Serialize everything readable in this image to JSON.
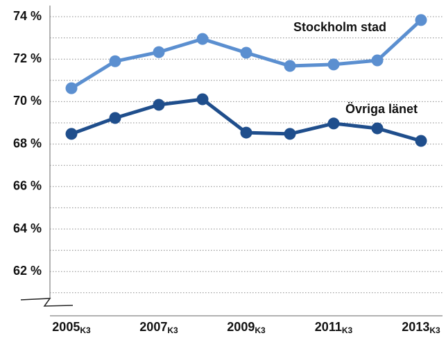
{
  "chart_data": {
    "type": "line",
    "categories": [
      "2005",
      null,
      "2007",
      null,
      "2009",
      null,
      "2011",
      null,
      "2013"
    ],
    "category_suffix": "K3",
    "series": [
      {
        "name": "Stockholm stad",
        "color": "#5b8fd0",
        "values": [
          70.63,
          71.9,
          72.33,
          72.95,
          72.3,
          71.68,
          71.75,
          71.94,
          73.84
        ]
      },
      {
        "name": "Övriga länet",
        "color": "#1f4e8c",
        "values": [
          68.48,
          69.23,
          69.85,
          70.11,
          68.54,
          68.48,
          68.97,
          68.74,
          68.15
        ]
      }
    ],
    "ylim": [
      60,
      74
    ],
    "yticks": [
      {
        "value": 62,
        "label": "62 %"
      },
      {
        "value": 64,
        "label": "64 %"
      },
      {
        "value": 66,
        "label": "66 %"
      },
      {
        "value": 68,
        "label": "68 %"
      },
      {
        "value": 70,
        "label": "70 %"
      },
      {
        "value": 72,
        "label": "72 %"
      },
      {
        "value": 74,
        "label": "74 %"
      }
    ],
    "minor_yticks": [
      61,
      63,
      65,
      67,
      69,
      71,
      73
    ],
    "grid": true
  }
}
